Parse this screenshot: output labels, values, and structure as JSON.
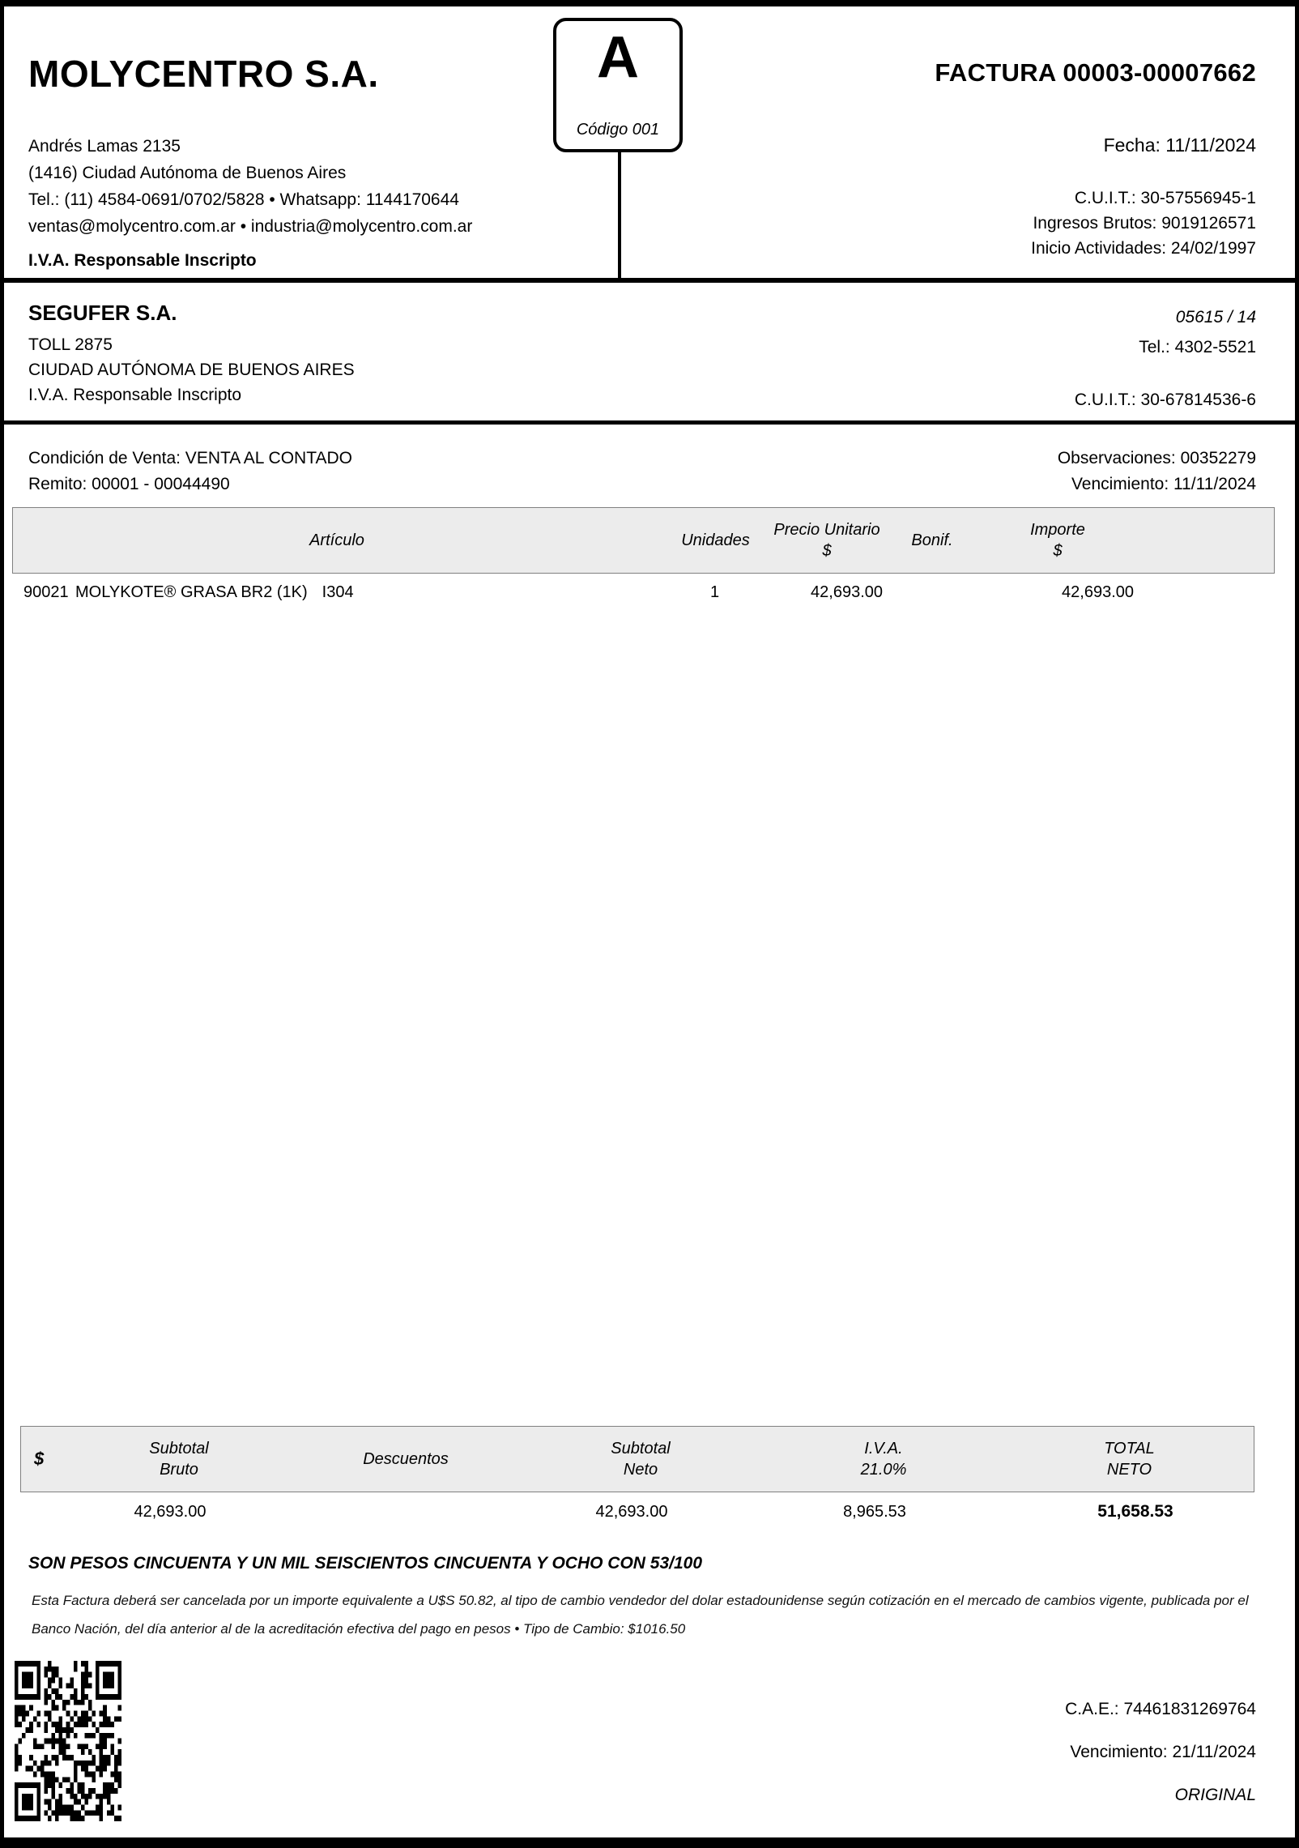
{
  "seller": {
    "name": "MOLYCENTRO S.A.",
    "address_line1": "Andrés Lamas 2135",
    "address_line2": "(1416) Ciudad Autónoma de Buenos Aires",
    "phone_line": "Tel.: (11) 4584-0691/0702/5828 • Whatsapp: 1144170644",
    "email_line": "ventas@molycentro.com.ar • industria@molycentro.com.ar",
    "iva_status": "I.V.A. Responsable Inscripto",
    "cuit": "C.U.I.T.: 30-57556945-1",
    "ingresos_brutos": "Ingresos Brutos: 9019126571",
    "inicio_actividades": "Inicio Actividades: 24/02/1997"
  },
  "letter_box": {
    "letter": "A",
    "code": "Código 001"
  },
  "title": "FACTURA 00003-00007662",
  "date": "Fecha: 11/11/2024",
  "customer": {
    "name": "SEGUFER S.A.",
    "address_line1": "TOLL 2875",
    "address_line2": "CIUDAD AUTÓNOMA DE BUENOS AIRES",
    "iva_status": "I.V.A. Responsable Inscripto",
    "account": "05615 / 14",
    "phone": "Tel.: 4302-5521",
    "cuit": "C.U.I.T.: 30-67814536-6"
  },
  "conditions": {
    "sale_condition": "Condición de Venta: VENTA AL CONTADO",
    "remito": "Remito: 00001 - 00044490",
    "observaciones": "Observaciones: 00352279",
    "vencimiento": "Vencimiento: 11/11/2024"
  },
  "items": {
    "headers": {
      "articulo": "Artículo",
      "unidades": "Unidades",
      "precio_l1": "Precio Unitario",
      "precio_l2": "$",
      "bonif": "Bonif.",
      "importe_l1": "Importe",
      "importe_l2": "$"
    },
    "rows": [
      {
        "code": "90021",
        "description": "MOLYKOTE® GRASA BR2 (1K)",
        "ref": "I304",
        "unidades": "1",
        "precio": "42,693.00",
        "bonif": "",
        "importe": "42,693.00"
      }
    ]
  },
  "totals": {
    "headers": {
      "currency": "$",
      "subtotal_bruto_l1": "Subtotal",
      "subtotal_bruto_l2": "Bruto",
      "descuentos": "Descuentos",
      "subtotal_neto_l1": "Subtotal",
      "subtotal_neto_l2": "Neto",
      "iva_l1": "I.V.A.",
      "iva_l2": "21.0%",
      "total_l1": "TOTAL",
      "total_l2": "NETO"
    },
    "values": {
      "subtotal_bruto": "42,693.00",
      "descuentos": "",
      "subtotal_neto": "42,693.00",
      "iva": "8,965.53",
      "total_neto": "51,658.53"
    }
  },
  "amount_in_words": "SON PESOS CINCUENTA Y UN MIL SEISCIENTOS CINCUENTA Y OCHO CON 53/100",
  "fine_print": {
    "line1": "Esta Factura deberá ser cancelada por un importe equivalente a U$S 50.82, al tipo de cambio vendedor del dolar estadounidense según cotización en el mercado de cambios vigente, publicada por el",
    "line2": "Banco Nación, del día anterior al de la acreditación efectiva del pago en pesos • Tipo de Cambio: $1016.50"
  },
  "footer": {
    "cae": "C.A.E.: 74461831269764",
    "cae_vencimiento": "Vencimiento: 21/11/2024",
    "copy_label": "ORIGINAL"
  }
}
